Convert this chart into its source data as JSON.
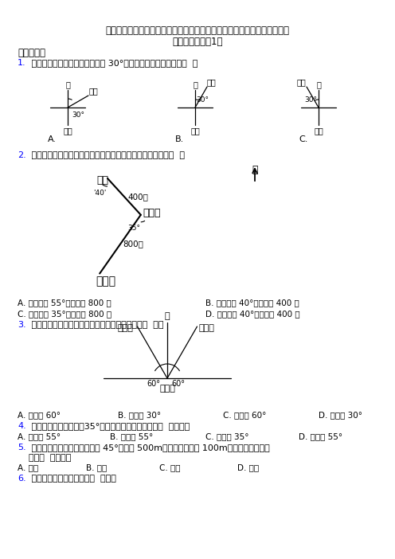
{
  "title_line1": "（常考题）最新人教版小学数学六年级上册第二单元位置与方向（二）测试",
  "title_line2": "（答案解析）（1）",
  "section1": "一、选择题",
  "bg_color": "#ffffff"
}
